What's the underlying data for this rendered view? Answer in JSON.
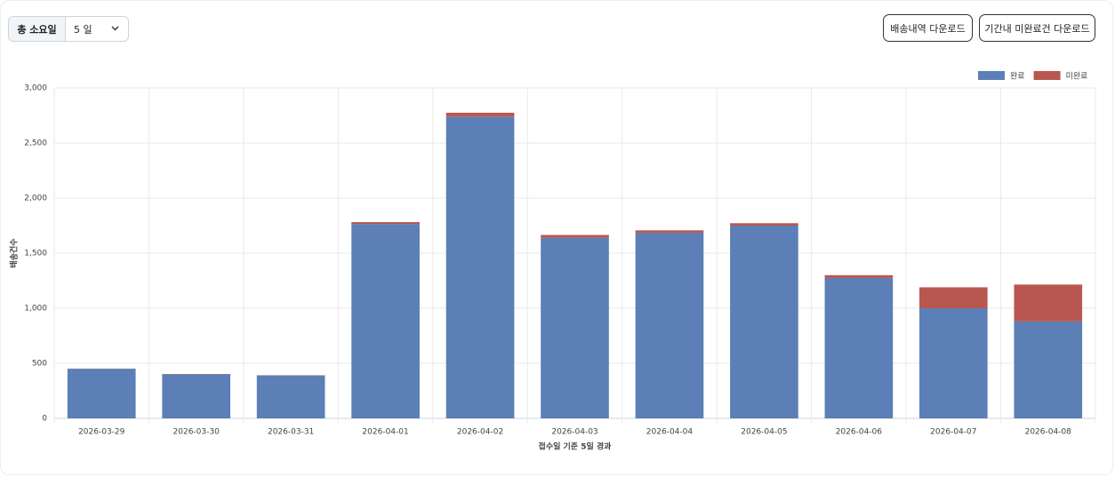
{
  "filter": {
    "label": "총 소요일",
    "value": "5 일"
  },
  "buttons": [
    "배송내역 다운로드",
    "기간내 미완료건 다운로드"
  ],
  "chart_data": {
    "type": "stacked_bar",
    "y_label": "배송건수",
    "x_label": "접수일 기준 5일 경과",
    "categories": [
      "2026-03-29",
      "2026-03-30",
      "2026-03-31",
      "2026-04-01",
      "2026-04-02",
      "2026-04-03",
      "2026-04-04",
      "2026-04-05",
      "2026-04-06",
      "2026-04-07",
      "2026-04-08"
    ],
    "series": [
      {
        "name": "완료",
        "color": "#5b7fb6",
        "values": [
          450,
          400,
          390,
          1765,
          2740,
          1640,
          1685,
          1750,
          1275,
          1000,
          880
        ]
      },
      {
        "name": "미완료",
        "color": "#b85750",
        "values": [
          2,
          3,
          2,
          17,
          35,
          25,
          22,
          22,
          25,
          190,
          335
        ]
      }
    ],
    "ylim": [
      0,
      3000
    ],
    "yticks": [
      0,
      500,
      {
        "value": 1000,
        "label": "1,000"
      },
      {
        "value": 1500,
        "label": "1,500"
      },
      {
        "value": 2000,
        "label": "2,000"
      },
      {
        "value": 2500,
        "label": "2,500"
      },
      {
        "value": 3000,
        "label": "3,000"
      }
    ],
    "grid": true,
    "legend": "top-right"
  }
}
